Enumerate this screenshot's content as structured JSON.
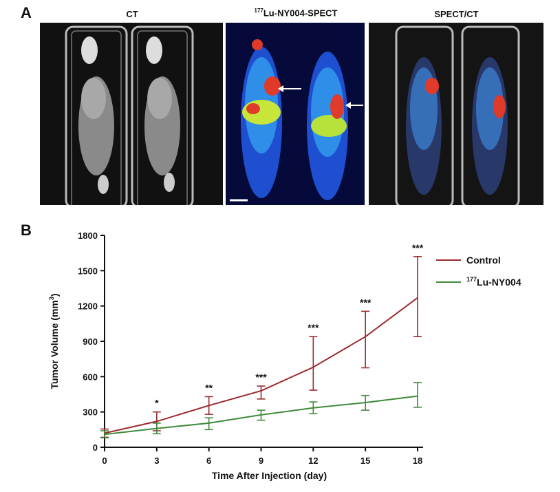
{
  "panel_a": {
    "letter": "A",
    "panels": [
      {
        "label": "CT"
      },
      {
        "label_sup": "177",
        "label_rest": "Lu-NY004-SPECT"
      },
      {
        "label": "SPECT/CT"
      }
    ]
  },
  "panel_b": {
    "letter": "B"
  },
  "colors": {
    "control": "#9b2a2f",
    "treatment": "#3f8a3a"
  },
  "chart_data": {
    "type": "line",
    "title": "",
    "xlabel": "Time After Injection (day)",
    "ylabel_main": "Tumor Volume (mm",
    "ylabel_sup": "3",
    "ylabel_end": ")",
    "x": [
      0,
      3,
      6,
      9,
      12,
      15,
      18
    ],
    "xticks": [
      "0",
      "3",
      "6",
      "9",
      "12",
      "15",
      "18"
    ],
    "yticks": [
      "0",
      "300",
      "600",
      "900",
      "1200",
      "1500",
      "1800"
    ],
    "xlim": [
      0,
      18
    ],
    "ylim": [
      0,
      1800
    ],
    "legend": "top-right",
    "series": [
      {
        "name": "Control",
        "values": [
          120,
          220,
          355,
          480,
          680,
          940,
          1270
        ],
        "err_lo": [
          35,
          80,
          75,
          70,
          195,
          265,
          330
        ],
        "err_hi": [
          35,
          80,
          75,
          40,
          260,
          215,
          350
        ]
      },
      {
        "name_sup": "177",
        "name_rest": "Lu-NY004",
        "values": [
          110,
          160,
          205,
          275,
          335,
          380,
          435
        ],
        "err_lo": [
          30,
          45,
          55,
          45,
          50,
          65,
          95
        ],
        "err_hi": [
          30,
          45,
          45,
          40,
          50,
          60,
          115
        ]
      }
    ],
    "annotations": [
      "",
      "*",
      "**",
      "***",
      "***",
      "***",
      "***"
    ]
  }
}
